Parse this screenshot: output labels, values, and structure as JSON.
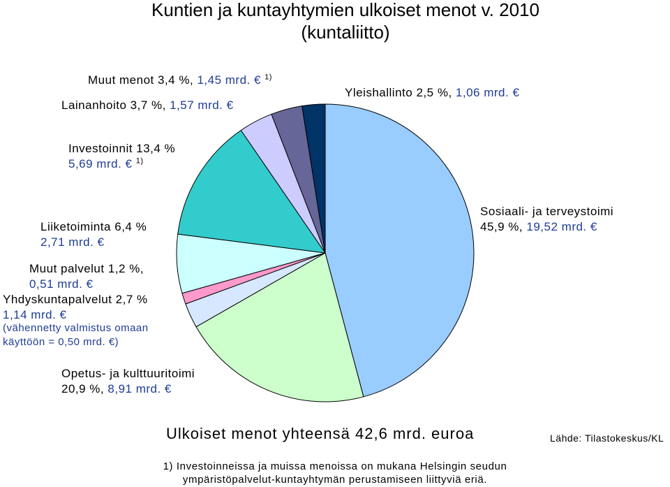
{
  "chart_data": {
    "type": "pie",
    "title_line1": "Kuntien ja kuntayhtymien ulkoiset menot v. 2010",
    "title_line2": "(kuntaliitto)",
    "start_angle_deg": 0,
    "direction": "clockwise",
    "slices": [
      {
        "name": "Sosiaali- ja terveystoimi",
        "pct_text": "45,9 %,",
        "amount_text": "19,52 mrd. €",
        "value": 45.9,
        "color": "#99ccff"
      },
      {
        "name": "Opetus- ja kulttuuritoimi",
        "pct_text": "20,9 %,",
        "amount_text": "8,91 mrd. €",
        "value": 20.9,
        "color": "#ccffcc"
      },
      {
        "name": "Yhdyskuntapalvelut",
        "pct_text": "2,7 %",
        "amount_text": "1,14 mrd. €",
        "value": 2.7,
        "color": "#d6e8ff",
        "note": "(vähennetty valmistus omaan käyttöön = 0,50 mrd. €)"
      },
      {
        "name": "Muut palvelut",
        "pct_text": "1,2 %,",
        "amount_text": "0,51 mrd. €",
        "value": 1.2,
        "color": "#ff99cc"
      },
      {
        "name": "Liiketoiminta",
        "pct_text": "6,4 %",
        "amount_text": "2,71 mrd. €",
        "value": 6.4,
        "color": "#ccffff"
      },
      {
        "name": "Investoinnit",
        "pct_text": "13,4 %",
        "amount_text": "5,69 mrd. €",
        "value": 13.4,
        "color": "#33cccc",
        "footnote_mark": "1)"
      },
      {
        "name": "Lainanhoito",
        "pct_text": "3,7 %,",
        "amount_text": "1,57 mrd. €",
        "value": 3.7,
        "color": "#ccccff"
      },
      {
        "name": "Muut menot",
        "pct_text": "3,4 %,",
        "amount_text": "1,45 mrd. €",
        "value": 3.4,
        "color": "#666699",
        "footnote_mark": "1)"
      },
      {
        "name": "Yleishallinto",
        "pct_text": "2,5 %,",
        "amount_text": "1,06 mrd. €",
        "value": 2.5,
        "color": "#003366"
      }
    ],
    "total_text": "Ulkoiset menot yhteensä 42,6 mrd. euroa",
    "source_text": "Lähde: Tilastokeskus/KL",
    "footnote_line1": "1) Investoinneissa ja muissa menoissa on mukana Helsingin seudun",
    "footnote_line2": "ympäristöpalvelut-kuntayhtymän perustamiseen liittyviä eriä."
  }
}
